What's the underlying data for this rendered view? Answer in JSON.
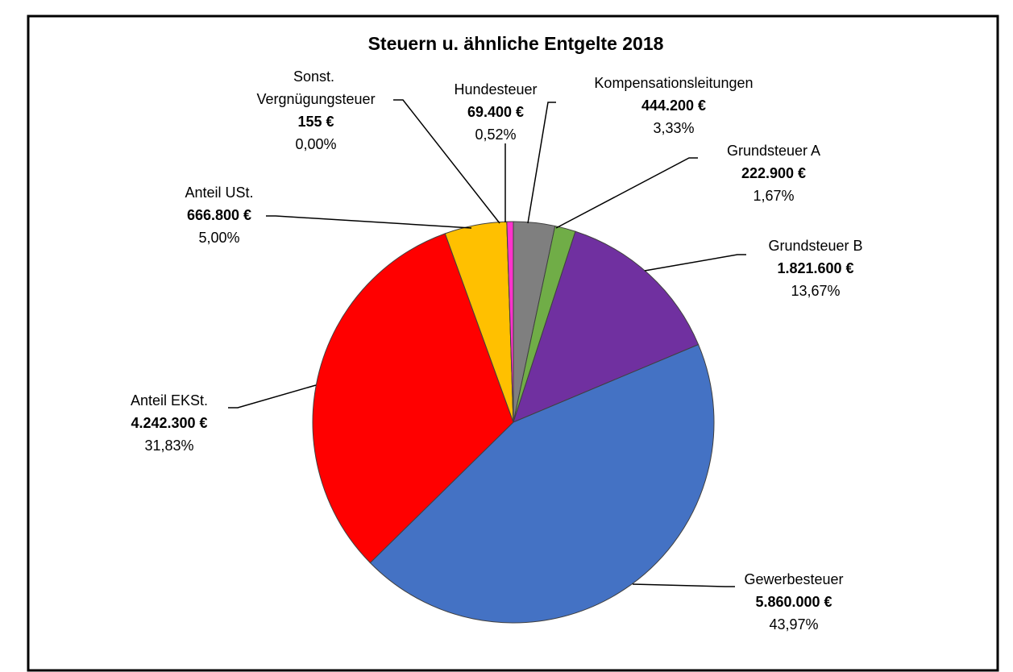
{
  "chart_data": {
    "type": "pie",
    "title": "Steuern u. ähnliche Entgelte 2018",
    "categories": [
      "Kompensationsleitungen",
      "Grundsteuer A",
      "Grundsteuer B",
      "Gewerbesteuer",
      "Anteil EKSt.",
      "Anteil USt.",
      "Sonst. Vergnügungsteuer",
      "Hundesteuer"
    ],
    "values": [
      444200,
      222900,
      1821600,
      5860000,
      4242300,
      666800,
      155,
      69400
    ],
    "value_labels": [
      "444.200 €",
      "222.900 €",
      "1.821.600 €",
      "5.860.000 €",
      "4.242.300 €",
      "666.800 €",
      "155 €",
      "69.400 €"
    ],
    "percent_labels": [
      "3,33%",
      "1,67%",
      "13,67%",
      "43,97%",
      "31,83%",
      "5,00%",
      "0,00%",
      "0,52%"
    ],
    "colors": [
      "#7f7f7f",
      "#70ad47",
      "#7030a0",
      "#4472c4",
      "#ff0000",
      "#ffc000",
      "#00b0f0",
      "#ff33cc"
    ]
  }
}
